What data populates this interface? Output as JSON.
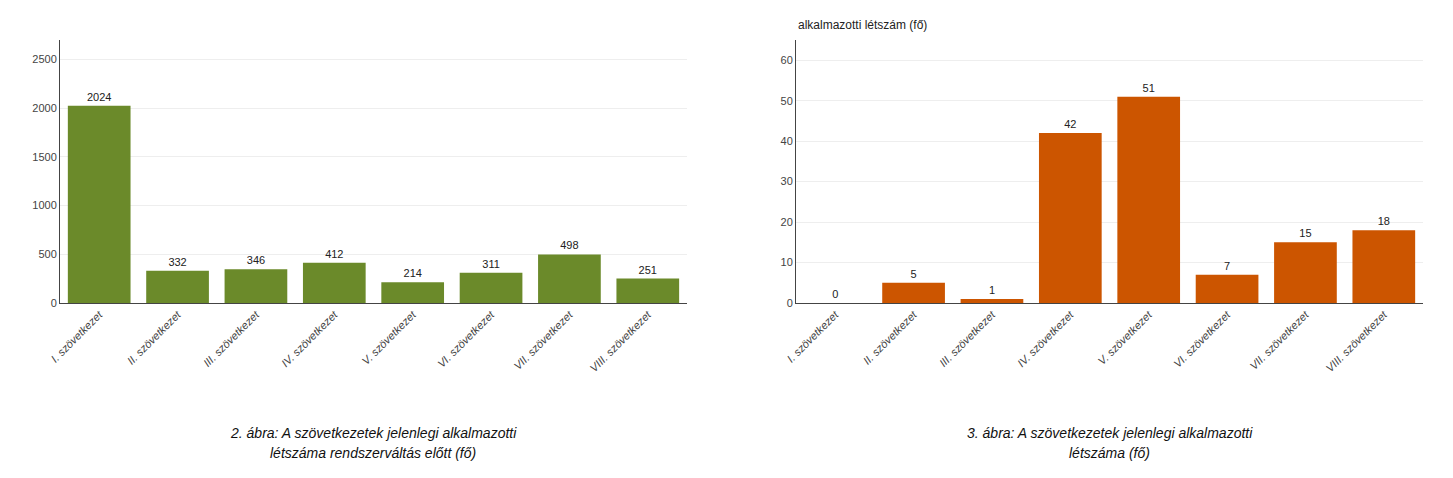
{
  "chart_data": [
    {
      "type": "bar",
      "categories": [
        "I. szövetkezet",
        "II. szövetkezet",
        "III. szövetkezet",
        "IV. szövetkezet",
        "V. szövetkezet",
        "VI. szövetkezet",
        "VII. szövetkezet",
        "VIII. szövetkezet"
      ],
      "values": [
        2024,
        332,
        346,
        412,
        214,
        311,
        498,
        251
      ],
      "color": "#6b8a2a",
      "ylim": [
        0,
        2700
      ],
      "yticks": [
        0,
        500,
        1000,
        1500,
        2000,
        2500
      ],
      "grid": true,
      "data_labels": true,
      "annotations": [
        "2. ábra: A szövetkezetek jelenlegi alkalmazotti",
        "létszáma rendszerváltás előtt (fő)"
      ]
    },
    {
      "type": "bar",
      "title": "alkalmazotti létszám (fő)",
      "categories": [
        "I. szövetkezet",
        "II. szövetkezet",
        "III. szövetkezet",
        "IV. szövetkezet",
        "V. szövetkezet",
        "VI. szövetkezet",
        "VII. szövetkezet",
        "VIII. szövetkezet"
      ],
      "values": [
        0,
        5,
        1,
        42,
        51,
        7,
        15,
        18
      ],
      "color": "#cc5500",
      "ylim": [
        0,
        65
      ],
      "yticks": [
        0,
        10,
        20,
        30,
        40,
        50,
        60
      ],
      "grid": true,
      "data_labels": true,
      "annotations": [
        "3. ábra: A szövetkezetek jelenlegi alkalmazotti",
        "létszáma (fő)"
      ]
    }
  ]
}
